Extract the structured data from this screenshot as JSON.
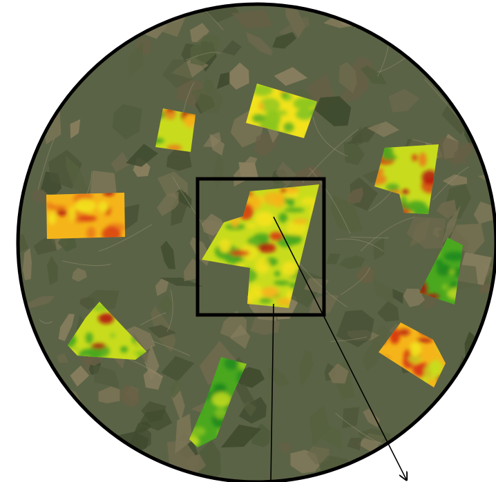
{
  "figure": {
    "type": "satellite-map-with-yield-field-overlays",
    "colors": {
      "background": "#ffffff",
      "frame": "#000000",
      "satellite_base": "#5b6346",
      "satellite_field_tones": [
        "#6f6a4e",
        "#4e5a3a",
        "#7a7455",
        "#3f4a2e",
        "#8a7f60",
        "#56613f",
        "#675f45",
        "#4a5236"
      ],
      "yield_scale": [
        "#1f8a1e",
        "#4aa81f",
        "#8cc61f",
        "#c8dc1d",
        "#f2e21c",
        "#f5b51a",
        "#ea7a17",
        "#d83a12",
        "#b3100e"
      ]
    },
    "field_overlays": [
      {
        "name": "field-top-center",
        "dominant": "green-yellow"
      },
      {
        "name": "field-top-left",
        "dominant": "green-yellow"
      },
      {
        "name": "field-right-upper",
        "dominant": "yellow-red"
      },
      {
        "name": "field-left",
        "dominant": "orange-red"
      },
      {
        "name": "field-center-highlighted",
        "dominant": "yellow-green",
        "highlighted": true
      },
      {
        "name": "field-right-middle",
        "dominant": "dark-green"
      },
      {
        "name": "field-left-lower",
        "dominant": "green-yellow"
      },
      {
        "name": "field-right-lower",
        "dominant": "orange-red"
      },
      {
        "name": "field-bottom-center",
        "dominant": "dark-green"
      }
    ],
    "highlight_box": {
      "color": "#000000"
    },
    "leader_lines": [
      {
        "name": "leader-line-down",
        "color": "#000000"
      },
      {
        "name": "leader-line-diagonal",
        "color": "#000000",
        "arrowhead": true
      }
    ]
  }
}
